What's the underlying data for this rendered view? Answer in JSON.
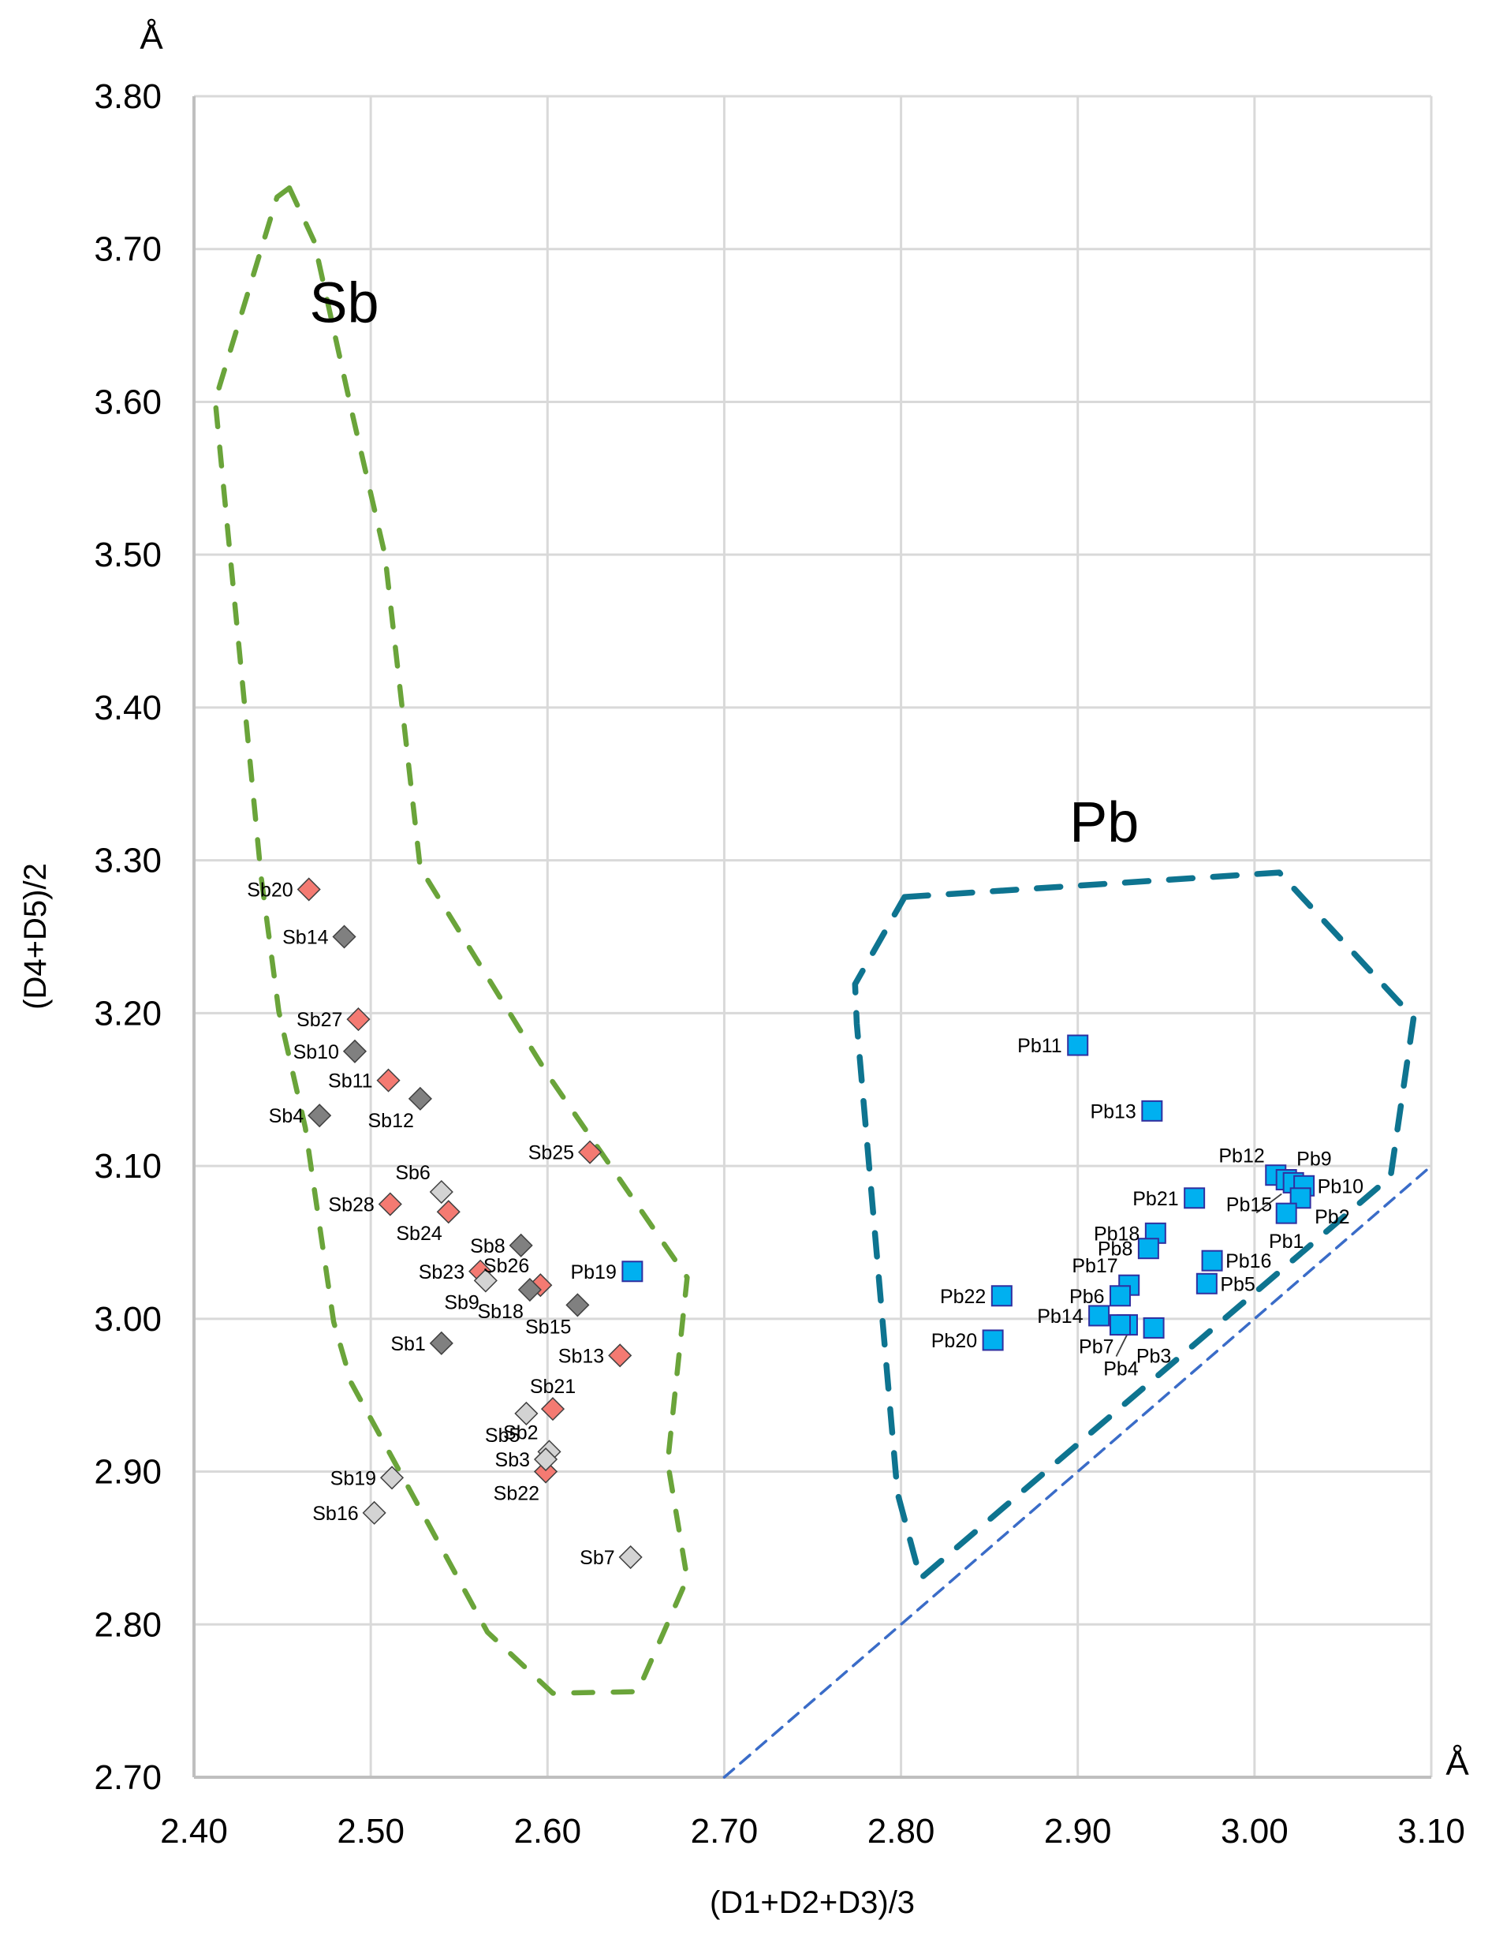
{
  "chart_data": {
    "type": "scatter",
    "title": "",
    "xlabel": "(D1+D2+D3)/3",
    "ylabel": "(D4+D5)/2",
    "x_unit": "Å",
    "y_unit": "Å",
    "xlim": [
      2.4,
      3.1
    ],
    "ylim": [
      2.7,
      3.8
    ],
    "grid": true,
    "legend": "none",
    "x_ticks": [
      "2.40",
      "2.50",
      "2.60",
      "2.70",
      "2.80",
      "2.90",
      "3.00",
      "3.10"
    ],
    "y_ticks": [
      "2.70",
      "2.80",
      "2.90",
      "3.00",
      "3.10",
      "3.20",
      "3.30",
      "3.40",
      "3.50",
      "3.60",
      "3.70",
      "3.80"
    ],
    "region_labels": [
      {
        "text": "Sb",
        "x": 2.485,
        "y": 3.665
      },
      {
        "text": "Pb",
        "x": 2.915,
        "y": 3.325
      }
    ],
    "colors": {
      "sb_red": "#f47a72",
      "sb_dark": "#808080",
      "sb_light": "#d3d3d3",
      "pb_blue": "#00b0f0",
      "pb_edge": "#3030a0",
      "sb_hull": "#6aa43a",
      "pb_hull": "#0e7490",
      "diagonal": "#3a6cc8",
      "grid": "#d9d9d9"
    },
    "reference_line": {
      "name": "y = x",
      "from": [
        2.7,
        2.7
      ],
      "to": [
        3.1,
        3.1
      ]
    },
    "hulls": [
      {
        "name": "Sb field",
        "points": [
          [
            2.454,
            3.74
          ],
          [
            2.468,
            3.705
          ],
          [
            2.49,
            3.59
          ],
          [
            2.508,
            3.5
          ],
          [
            2.528,
            3.295
          ],
          [
            2.56,
            3.235
          ],
          [
            2.6,
            3.16
          ],
          [
            2.679,
            3.027
          ],
          [
            2.668,
            2.906
          ],
          [
            2.679,
            2.83
          ],
          [
            2.651,
            2.756
          ],
          [
            2.603,
            2.755
          ],
          [
            2.566,
            2.795
          ],
          [
            2.524,
            2.884
          ],
          [
            2.489,
            2.958
          ],
          [
            2.479,
            2.998
          ],
          [
            2.463,
            3.125
          ],
          [
            2.448,
            3.201
          ],
          [
            2.438,
            3.289
          ],
          [
            2.412,
            3.601
          ],
          [
            2.447,
            3.734
          ]
        ]
      },
      {
        "name": "Pb field",
        "points": [
          [
            2.802,
            3.276
          ],
          [
            3.014,
            3.292
          ],
          [
            3.09,
            3.197
          ],
          [
            3.077,
            3.093
          ],
          [
            2.811,
            2.83
          ],
          [
            2.798,
            2.886
          ],
          [
            2.775,
            3.193
          ],
          [
            2.774,
            3.219
          ]
        ]
      }
    ],
    "series": [
      {
        "name": "Sb (red)",
        "marker": "diamond",
        "color": "#f47a72",
        "points": [
          {
            "label": "Sb20",
            "x": 2.465,
            "y": 3.281,
            "lpos": "left"
          },
          {
            "label": "Sb27",
            "x": 2.493,
            "y": 3.196,
            "lpos": "left"
          },
          {
            "label": "Sb11",
            "x": 2.51,
            "y": 3.156,
            "lpos": "left"
          },
          {
            "label": "Sb25",
            "x": 2.624,
            "y": 3.109,
            "lpos": "left"
          },
          {
            "label": "Sb28",
            "x": 2.511,
            "y": 3.075,
            "lpos": "left"
          },
          {
            "label": "Sb24",
            "x": 2.544,
            "y": 3.07,
            "lpos": "below-left"
          },
          {
            "label": "Sb23",
            "x": 2.562,
            "y": 3.031,
            "lpos": "left"
          },
          {
            "label": "Sb26",
            "x": 2.596,
            "y": 3.022,
            "lpos": "above-left"
          },
          {
            "label": "Sb13",
            "x": 2.641,
            "y": 2.976,
            "lpos": "left"
          },
          {
            "label": "Sb21",
            "x": 2.603,
            "y": 2.941,
            "lpos": "above"
          },
          {
            "label": "Sb22",
            "x": 2.599,
            "y": 2.9,
            "lpos": "below-left"
          }
        ]
      },
      {
        "name": "Sb (dark grey)",
        "marker": "diamond",
        "color": "#808080",
        "points": [
          {
            "label": "Sb14",
            "x": 2.485,
            "y": 3.25,
            "lpos": "left"
          },
          {
            "label": "Sb10",
            "x": 2.491,
            "y": 3.175,
            "lpos": "left"
          },
          {
            "label": "Sb12",
            "x": 2.528,
            "y": 3.144,
            "lpos": "below-left"
          },
          {
            "label": "Sb4",
            "x": 2.471,
            "y": 3.133,
            "lpos": "left"
          },
          {
            "label": "Sb8",
            "x": 2.585,
            "y": 3.048,
            "lpos": "left"
          },
          {
            "label": "Sb18",
            "x": 2.59,
            "y": 3.019,
            "lpos": "below-left"
          },
          {
            "label": "Sb15",
            "x": 2.617,
            "y": 3.009,
            "lpos": "below-left"
          },
          {
            "label": "Sb1",
            "x": 2.54,
            "y": 2.984,
            "lpos": "left"
          }
        ]
      },
      {
        "name": "Sb (light grey)",
        "marker": "diamond",
        "color": "#d3d3d3",
        "points": [
          {
            "label": "Sb6",
            "x": 2.54,
            "y": 3.083,
            "lpos": "above-left"
          },
          {
            "label": "Sb9",
            "x": 2.565,
            "y": 3.025,
            "lpos": "below-left"
          },
          {
            "label": "Sb5",
            "x": 2.588,
            "y": 2.938,
            "lpos": "below-left"
          },
          {
            "label": "Sb2",
            "x": 2.601,
            "y": 2.913,
            "lpos": "above-left"
          },
          {
            "label": "Sb3",
            "x": 2.599,
            "y": 2.908,
            "lpos": "left"
          },
          {
            "label": "Sb19",
            "x": 2.512,
            "y": 2.896,
            "lpos": "left"
          },
          {
            "label": "Sb16",
            "x": 2.502,
            "y": 2.873,
            "lpos": "left"
          },
          {
            "label": "Sb7",
            "x": 2.647,
            "y": 2.844,
            "lpos": "left"
          }
        ]
      },
      {
        "name": "Pb",
        "marker": "square",
        "color": "#00b0f0",
        "points": [
          {
            "label": "Pb19",
            "x": 2.648,
            "y": 3.031,
            "lpos": "left"
          },
          {
            "label": "Pb11",
            "x": 2.9,
            "y": 3.179,
            "lpos": "left"
          },
          {
            "label": "Pb13",
            "x": 2.942,
            "y": 3.136,
            "lpos": "left"
          },
          {
            "label": "Pb12",
            "x": 3.012,
            "y": 3.094,
            "lpos": "above-left"
          },
          {
            "label": "Pb15",
            "x": 3.018,
            "y": 3.091,
            "lpos": "leader-left"
          },
          {
            "label": "Pb9",
            "x": 3.022,
            "y": 3.089,
            "lpos": "above-right"
          },
          {
            "label": "Pb10",
            "x": 3.028,
            "y": 3.087,
            "lpos": "right"
          },
          {
            "label": "Pb2",
            "x": 3.026,
            "y": 3.079,
            "lpos": "below-right"
          },
          {
            "label": "Pb1",
            "x": 3.018,
            "y": 3.069,
            "lpos": "below"
          },
          {
            "label": "Pb21",
            "x": 2.966,
            "y": 3.079,
            "lpos": "left"
          },
          {
            "label": "Pb18",
            "x": 2.944,
            "y": 3.056,
            "lpos": "left"
          },
          {
            "label": "Pb8",
            "x": 2.94,
            "y": 3.046,
            "lpos": "left"
          },
          {
            "label": "Pb16",
            "x": 2.976,
            "y": 3.038,
            "lpos": "right"
          },
          {
            "label": "Pb5",
            "x": 2.973,
            "y": 3.023,
            "lpos": "right"
          },
          {
            "label": "Pb17",
            "x": 2.929,
            "y": 3.022,
            "lpos": "above-left"
          },
          {
            "label": "Pb6",
            "x": 2.924,
            "y": 3.015,
            "lpos": "left"
          },
          {
            "label": "Pb22",
            "x": 2.857,
            "y": 3.015,
            "lpos": "left"
          },
          {
            "label": "Pb14",
            "x": 2.912,
            "y": 3.002,
            "lpos": "left"
          },
          {
            "label": "Pb4",
            "x": 2.928,
            "y": 2.996,
            "lpos": "leader-below"
          },
          {
            "label": "Pb7",
            "x": 2.924,
            "y": 2.996,
            "lpos": "below-left"
          },
          {
            "label": "Pb3",
            "x": 2.943,
            "y": 2.994,
            "lpos": "below"
          },
          {
            "label": "Pb20",
            "x": 2.852,
            "y": 2.986,
            "lpos": "left"
          }
        ]
      }
    ]
  }
}
